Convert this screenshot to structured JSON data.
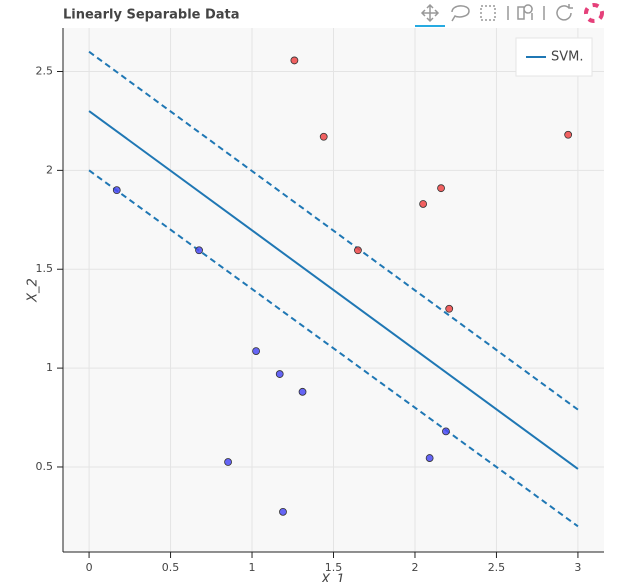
{
  "chart_data": {
    "type": "scatter",
    "title": "Linearly Separable Data",
    "x_label": "X_1",
    "y_label": "X_2",
    "xlim": [
      -0.16,
      3.16
    ],
    "ylim": [
      0.07,
      2.72
    ],
    "xticks": [
      0,
      0.5,
      1,
      1.5,
      2,
      2.5,
      3
    ],
    "yticks": [
      0.5,
      1,
      1.5,
      2,
      2.5
    ],
    "grid": true,
    "legend": "top-right",
    "points": [
      {
        "color": "#4b4bf5",
        "x": [
          0.17,
          0.675,
          1.025,
          0.853,
          1.17,
          1.31,
          1.19,
          2.09,
          2.19
        ],
        "values": [
          1.9,
          1.596,
          1.086,
          0.525,
          0.97,
          0.88,
          0.273,
          0.545,
          0.68
        ]
      },
      {
        "color": "#f04747",
        "x": [
          1.26,
          1.44,
          1.65,
          2.05,
          2.16,
          2.21,
          2.94
        ],
        "values": [
          2.556,
          2.17,
          1.596,
          1.83,
          1.91,
          1.3,
          2.18
        ]
      }
    ],
    "series": [
      {
        "name": "SVM.",
        "color": "#1f77b4",
        "dash": false,
        "x": [
          0,
          3
        ],
        "values": [
          2.3,
          0.49
        ]
      },
      {
        "color": "#1f77b4",
        "dash": true,
        "x": [
          0,
          3
        ],
        "values": [
          2.6,
          0.79
        ]
      },
      {
        "color": "#1f77b4",
        "dash": true,
        "x": [
          0,
          3
        ],
        "values": [
          2.0,
          0.2
        ]
      }
    ]
  }
}
